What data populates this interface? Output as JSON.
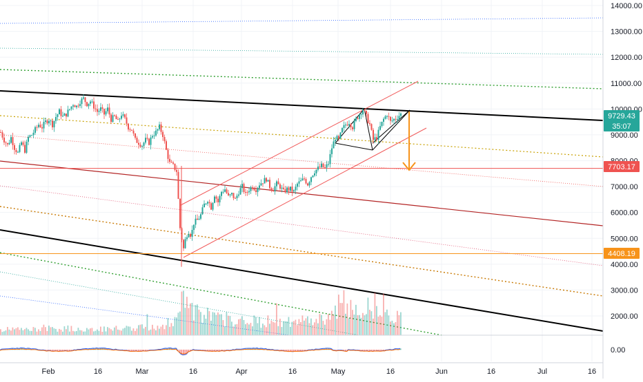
{
  "chart_data": {
    "type": "candlestick",
    "price_axis": {
      "ticks": [
        14000,
        13000,
        12000,
        11000,
        10000,
        9000,
        8000,
        7000,
        6000,
        5000,
        4000,
        3000,
        2000
      ],
      "tick_labels": [
        "14000.00",
        "13000.00",
        "12000.00",
        "11000.00",
        "10000.00",
        "9000.00",
        "8000.00",
        "7000.00",
        "6000.00",
        "5000.00",
        "4000.00",
        "3000.00",
        "2000.00"
      ],
      "range": [
        1200,
        14200
      ]
    },
    "oscillator_axis": {
      "ticks": [
        0
      ],
      "tick_labels": [
        "0.00"
      ]
    },
    "time_axis": {
      "tick_labels": [
        "Feb",
        "16",
        "Mar",
        "16",
        "Apr",
        "16",
        "May",
        "16",
        "Jun",
        "16",
        "Jul",
        "16"
      ]
    },
    "price_badges": [
      {
        "label": "9729.43",
        "value": 9729.43,
        "color": "#26a69a"
      },
      {
        "label": "35:07",
        "value": 9300,
        "color": "#26a69a"
      },
      {
        "label": "7703.17",
        "value": 7703.17,
        "color": "#ef5350"
      },
      {
        "label": "4408.19",
        "value": 4408.19,
        "color": "#f7931a"
      }
    ],
    "horizontal_levels": [
      {
        "value": 7703.17,
        "color": "#ef5350"
      },
      {
        "value": 4408.19,
        "color": "#f7931a"
      }
    ],
    "price_series_approx": [
      [
        0,
        9100
      ],
      [
        5,
        8800
      ],
      [
        10,
        8600
      ],
      [
        15,
        8900
      ],
      [
        20,
        8500
      ],
      [
        25,
        8300
      ],
      [
        30,
        8700
      ],
      [
        35,
        8400
      ],
      [
        40,
        8900
      ],
      [
        45,
        9000
      ],
      [
        50,
        9200
      ],
      [
        55,
        9400
      ],
      [
        60,
        9300
      ],
      [
        65,
        9500
      ],
      [
        70,
        9600
      ],
      [
        75,
        9400
      ],
      [
        80,
        9700
      ],
      [
        85,
        9900
      ],
      [
        90,
        9700
      ],
      [
        95,
        9800
      ],
      [
        100,
        10000
      ],
      [
        105,
        10200
      ],
      [
        110,
        10100
      ],
      [
        115,
        10300
      ],
      [
        120,
        10400
      ],
      [
        125,
        10200
      ],
      [
        130,
        10300
      ],
      [
        135,
        10100
      ],
      [
        140,
        9900
      ],
      [
        145,
        10000
      ],
      [
        150,
        9800
      ],
      [
        155,
        10000
      ],
      [
        160,
        9600
      ],
      [
        165,
        9700
      ],
      [
        170,
        9500
      ],
      [
        175,
        9800
      ],
      [
        180,
        9600
      ],
      [
        185,
        9300
      ],
      [
        190,
        9200
      ],
      [
        195,
        8800
      ],
      [
        200,
        8700
      ],
      [
        205,
        8600
      ],
      [
        210,
        8800
      ],
      [
        215,
        8700
      ],
      [
        220,
        9000
      ],
      [
        225,
        9100
      ],
      [
        230,
        9300
      ],
      [
        235,
        9000
      ],
      [
        240,
        8400
      ],
      [
        245,
        7900
      ],
      [
        250,
        7800
      ],
      [
        255,
        7600
      ],
      [
        260,
        5400
      ],
      [
        263,
        4900
      ],
      [
        265,
        4600
      ],
      [
        268,
        5000
      ],
      [
        272,
        5300
      ],
      [
        276,
        5100
      ],
      [
        280,
        5600
      ],
      [
        285,
        5700
      ],
      [
        290,
        5900
      ],
      [
        295,
        6300
      ],
      [
        300,
        6500
      ],
      [
        305,
        6200
      ],
      [
        310,
        6700
      ],
      [
        315,
        6400
      ],
      [
        320,
        6800
      ],
      [
        325,
        6900
      ],
      [
        330,
        6600
      ],
      [
        335,
        6700
      ],
      [
        340,
        6500
      ],
      [
        345,
        6800
      ],
      [
        350,
        7000
      ],
      [
        355,
        6700
      ],
      [
        360,
        6900
      ],
      [
        365,
        7000
      ],
      [
        370,
        6900
      ],
      [
        375,
        7100
      ],
      [
        380,
        7200
      ],
      [
        385,
        7300
      ],
      [
        390,
        7000
      ],
      [
        395,
        6900
      ],
      [
        400,
        7100
      ],
      [
        405,
        7000
      ],
      [
        410,
        6800
      ],
      [
        415,
        6900
      ],
      [
        420,
        6900
      ],
      [
        425,
        6800
      ],
      [
        430,
        7100
      ],
      [
        435,
        7200
      ],
      [
        440,
        7300
      ],
      [
        445,
        7100
      ],
      [
        450,
        7400
      ],
      [
        455,
        7600
      ],
      [
        460,
        7700
      ],
      [
        465,
        7800
      ],
      [
        470,
        7700
      ],
      [
        475,
        7900
      ],
      [
        480,
        8500
      ],
      [
        485,
        8900
      ],
      [
        490,
        8800
      ],
      [
        495,
        9200
      ],
      [
        500,
        9400
      ],
      [
        505,
        9500
      ],
      [
        510,
        9300
      ],
      [
        515,
        9600
      ],
      [
        520,
        9800
      ],
      [
        525,
        10000
      ],
      [
        530,
        9700
      ],
      [
        535,
        9400
      ],
      [
        540,
        8800
      ],
      [
        545,
        8900
      ],
      [
        550,
        9300
      ],
      [
        555,
        9600
      ],
      [
        560,
        9800
      ],
      [
        565,
        9500
      ],
      [
        570,
        9600
      ],
      [
        575,
        9700
      ],
      [
        580,
        9800
      ]
    ],
    "volume_series_approx": [
      [
        0,
        0.1
      ],
      [
        20,
        0.12
      ],
      [
        40,
        0.1
      ],
      [
        60,
        0.14
      ],
      [
        80,
        0.11
      ],
      [
        100,
        0.13
      ],
      [
        120,
        0.1
      ],
      [
        140,
        0.12
      ],
      [
        160,
        0.11
      ],
      [
        180,
        0.15
      ],
      [
        200,
        0.14
      ],
      [
        220,
        0.16
      ],
      [
        240,
        0.22
      ],
      [
        255,
        0.3
      ],
      [
        262,
        1.0
      ],
      [
        266,
        0.65
      ],
      [
        275,
        0.45
      ],
      [
        290,
        0.4
      ],
      [
        305,
        0.35
      ],
      [
        320,
        0.3
      ],
      [
        340,
        0.3
      ],
      [
        360,
        0.28
      ],
      [
        380,
        0.26
      ],
      [
        400,
        0.25
      ],
      [
        420,
        0.24
      ],
      [
        440,
        0.28
      ],
      [
        460,
        0.3
      ],
      [
        480,
        0.38
      ],
      [
        490,
        0.55
      ],
      [
        500,
        0.5
      ],
      [
        515,
        0.45
      ],
      [
        530,
        0.55
      ],
      [
        540,
        0.6
      ],
      [
        555,
        0.4
      ],
      [
        570,
        0.35
      ],
      [
        580,
        0.3
      ]
    ],
    "grid": true
  }
}
